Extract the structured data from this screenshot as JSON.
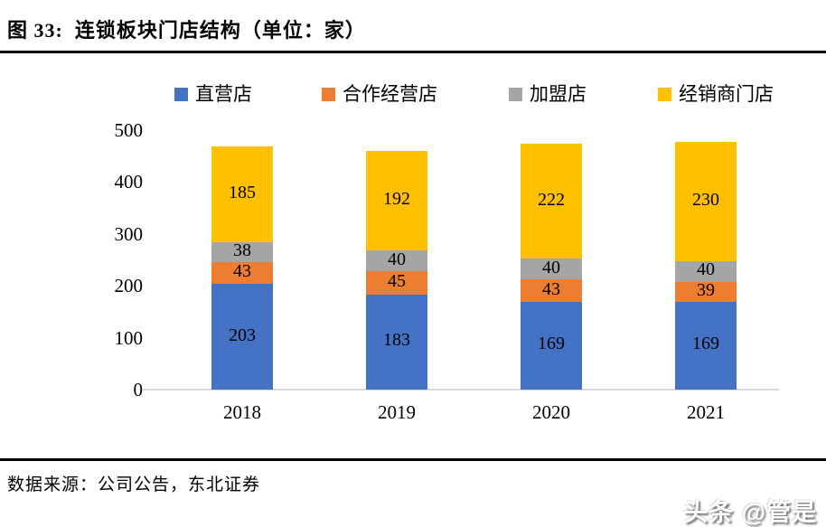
{
  "title": "图 33:  连锁板块门店结构（单位：家）",
  "source": "数据来源：公司公告，东北证券",
  "watermark": "头条 @管是",
  "chart_data": {
    "type": "bar",
    "stacked": true,
    "title": "连锁板块门店结构（单位：家）",
    "categories": [
      "2018",
      "2019",
      "2020",
      "2021"
    ],
    "series": [
      {
        "name": "直营店",
        "color": "#4472C4",
        "values": [
          203,
          183,
          169,
          169
        ]
      },
      {
        "name": "合作经营店",
        "color": "#ED7D31",
        "values": [
          43,
          45,
          43,
          39
        ]
      },
      {
        "name": "加盟店",
        "color": "#A5A5A5",
        "values": [
          38,
          40,
          40,
          40
        ]
      },
      {
        "name": "经销商门店",
        "color": "#FFC000",
        "values": [
          185,
          192,
          222,
          230
        ]
      }
    ],
    "totals": [
      469,
      460,
      474,
      478
    ],
    "xlabel": "",
    "ylabel": "",
    "ylim": [
      0,
      500
    ],
    "yticks": [
      0,
      100,
      200,
      300,
      400,
      500
    ],
    "grid": false,
    "legend_position": "top",
    "axis_line_color": "#D9D9D9",
    "label_color": "#000000"
  }
}
